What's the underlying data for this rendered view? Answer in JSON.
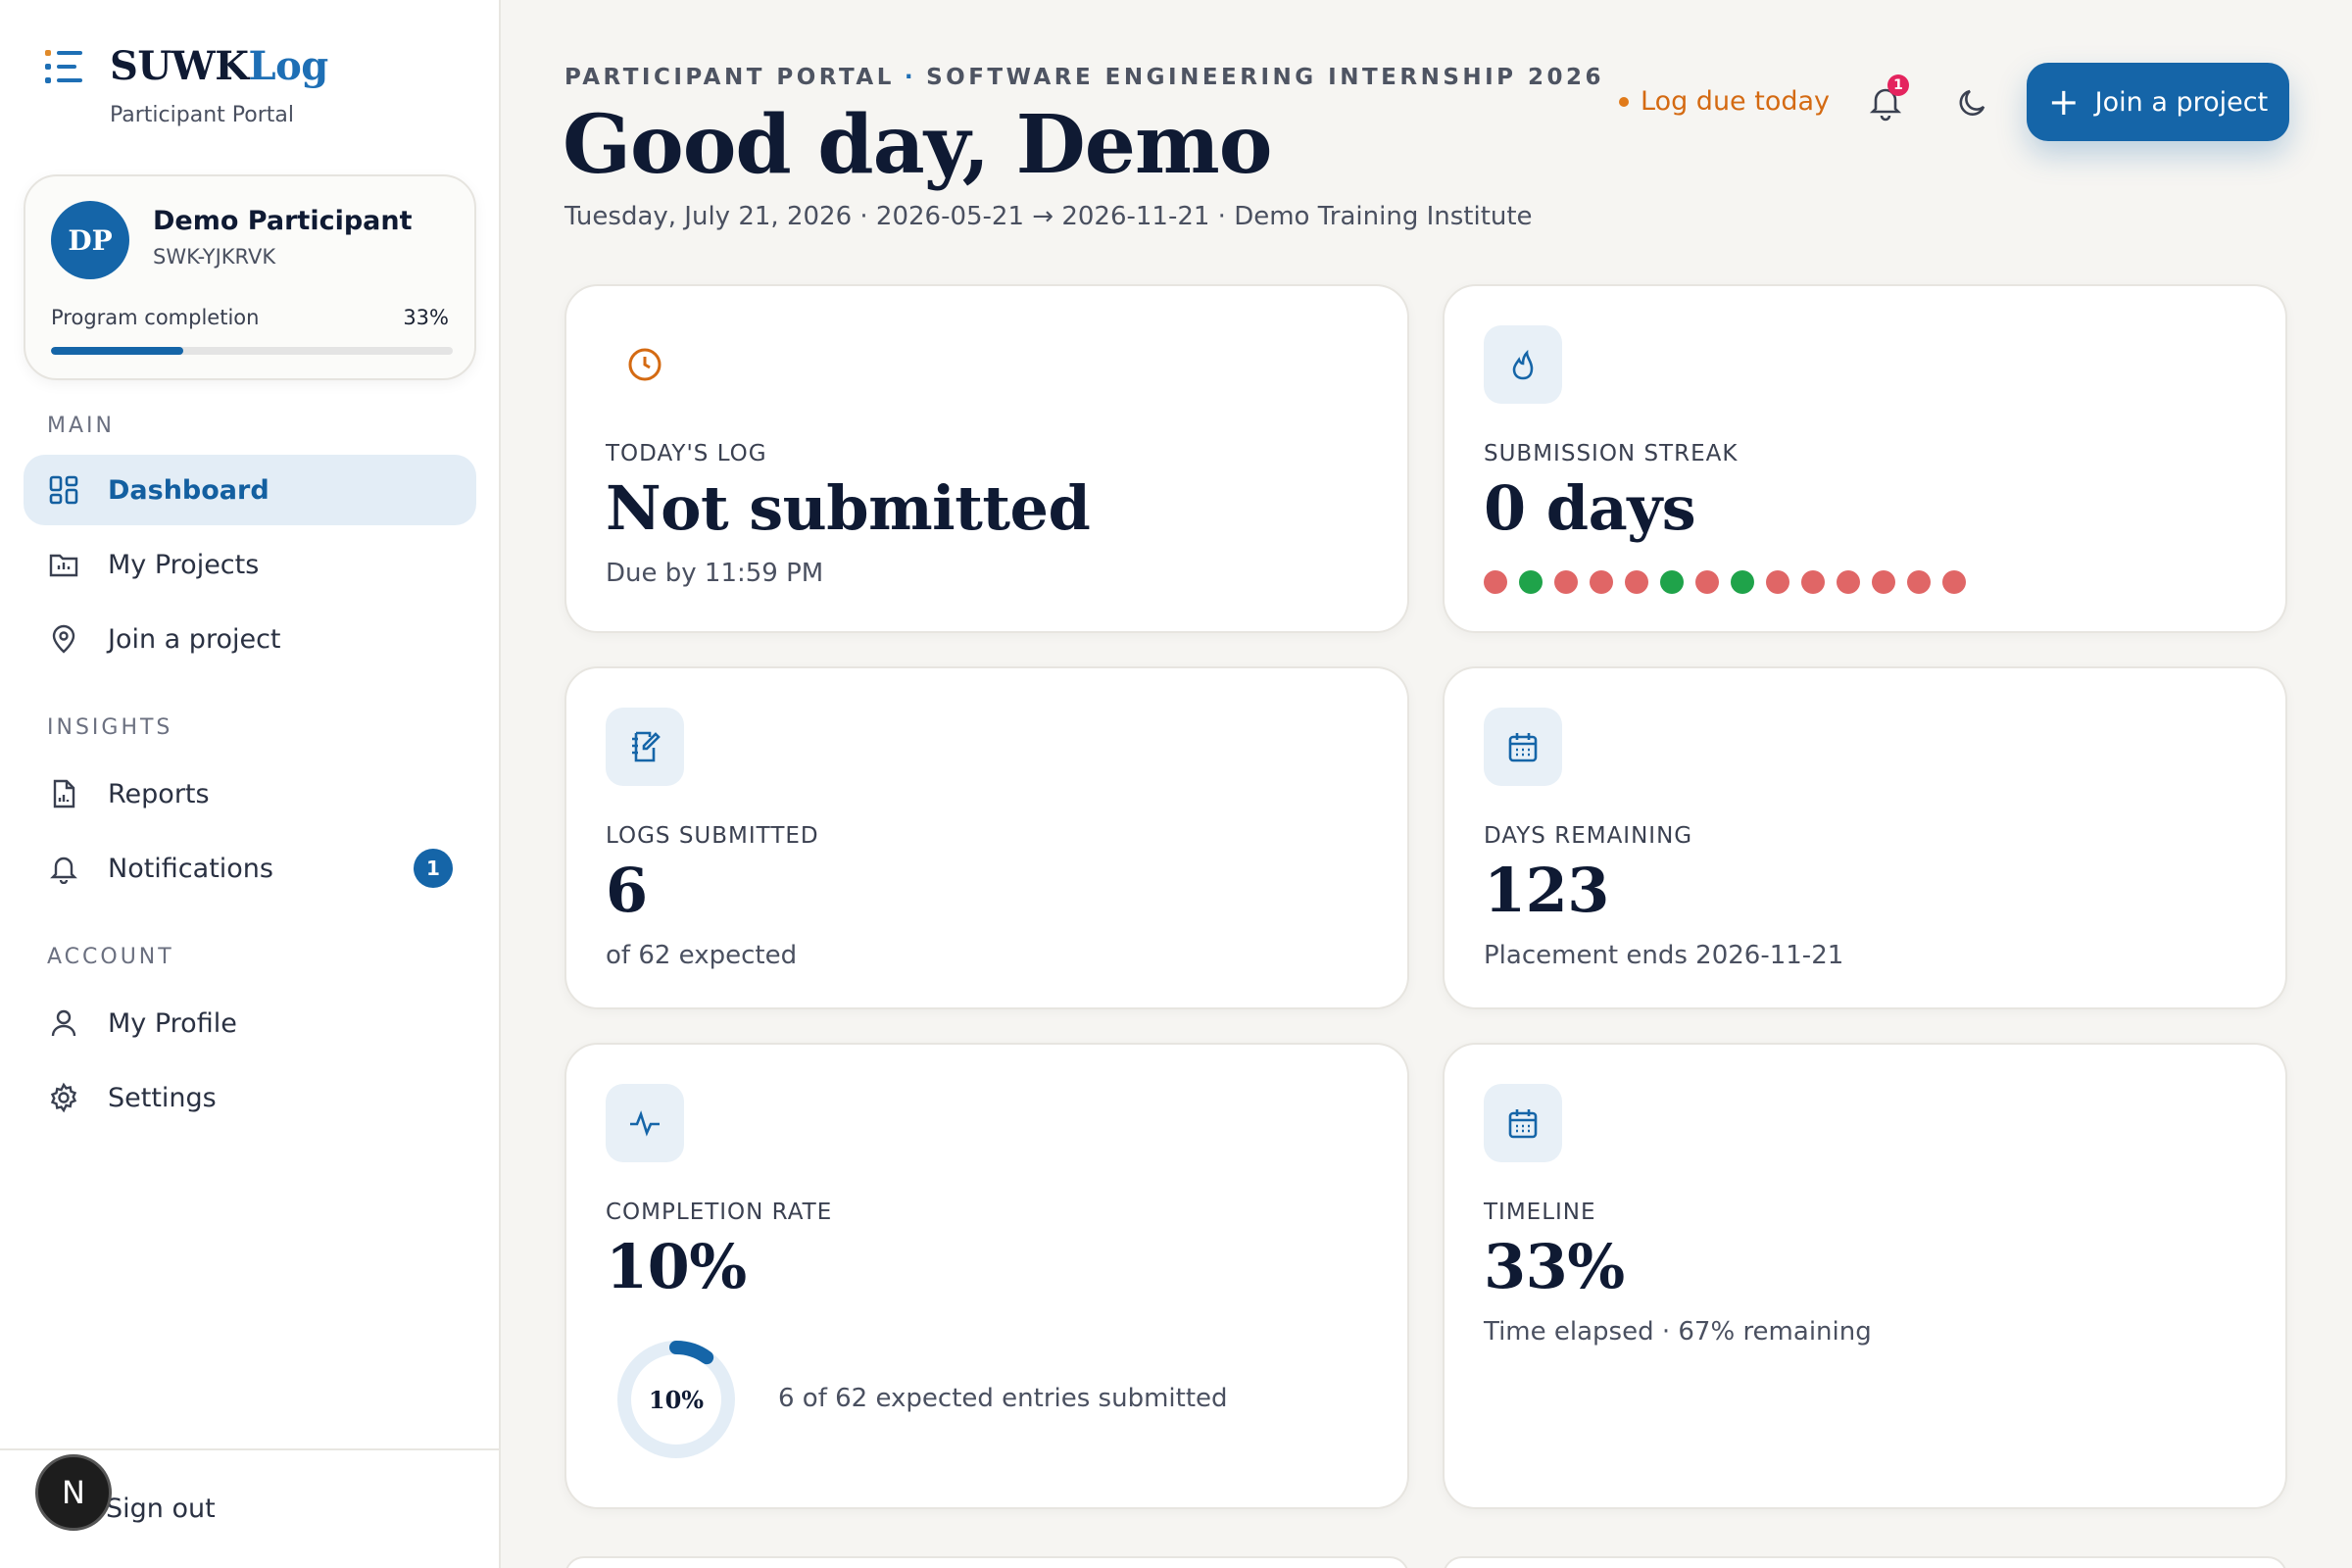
{
  "brand": {
    "name_main": "SUWK",
    "name_accent": "Log",
    "subtitle": "Participant Portal"
  },
  "profile": {
    "initials": "DP",
    "name": "Demo Participant",
    "id": "SWK-YJKRVK",
    "completion_label": "Program completion",
    "completion_value": "33%",
    "completion_fraction": 0.33
  },
  "nav": {
    "main_label": "MAIN",
    "dashboard": "Dashboard",
    "my_projects": "My Projects",
    "join_project": "Join a project",
    "insights_label": "INSIGHTS",
    "reports": "Reports",
    "notifications": "Notifications",
    "notifications_count": "1",
    "account_label": "ACCOUNT",
    "my_profile": "My Profile",
    "settings": "Settings",
    "sign_out": "Sign out",
    "fab_letter": "N"
  },
  "header": {
    "eyebrow_left": "PARTICIPANT PORTAL",
    "eyebrow_sep": "·",
    "eyebrow_right": "SOFTWARE ENGINEERING INTERNSHIP 2026",
    "greeting": "Good day, Demo",
    "meta": "Tuesday, July 21, 2026 · 2026-05-21 → 2026-11-21 · Demo Training Institute",
    "due_text": "Log due today",
    "bell_count": "1",
    "join_button": "Join a project"
  },
  "cards": {
    "todays_log": {
      "label": "TODAY'S LOG",
      "value": "Not submitted",
      "sub": "Due by 11:59 PM"
    },
    "streak": {
      "label": "SUBMISSION STREAK",
      "value": "0 days",
      "days": [
        "missed",
        "submitted",
        "missed",
        "missed",
        "missed",
        "submitted",
        "missed",
        "submitted",
        "missed",
        "missed",
        "missed",
        "missed",
        "missed",
        "missed"
      ]
    },
    "logs_submitted": {
      "label": "LOGS SUBMITTED",
      "value": "6",
      "sub": "of 62 expected"
    },
    "days_remaining": {
      "label": "DAYS REMAINING",
      "value": "123",
      "sub": "Placement ends 2026-11-21"
    },
    "completion_rate": {
      "label": "COMPLETION RATE",
      "value": "10%",
      "ring_label": "10%",
      "ring_fraction": 0.1,
      "caption": "6 of 62 expected entries submitted"
    },
    "timeline": {
      "label": "TIMELINE",
      "value": "33%",
      "sub": "Time elapsed · 67% remaining"
    }
  },
  "colors": {
    "primary": "#1565a8",
    "missed": "#e06666",
    "submitted": "#1fa34a",
    "warning": "#d46a12",
    "badge": "#e4245e"
  },
  "icons": {
    "brand": "list-icon",
    "dashboard": "grid-icon",
    "projects": "folder-chart-icon",
    "join": "map-pin-icon",
    "reports": "document-chart-icon",
    "notifications": "bell-icon",
    "profile": "user-icon",
    "settings": "gear-icon",
    "theme": "moon-icon",
    "todays_log": "clock-icon",
    "streak": "flame-icon",
    "logs": "notebook-pen-icon",
    "days": "calendar-icon",
    "completion": "activity-icon",
    "timeline": "calendar-icon"
  }
}
